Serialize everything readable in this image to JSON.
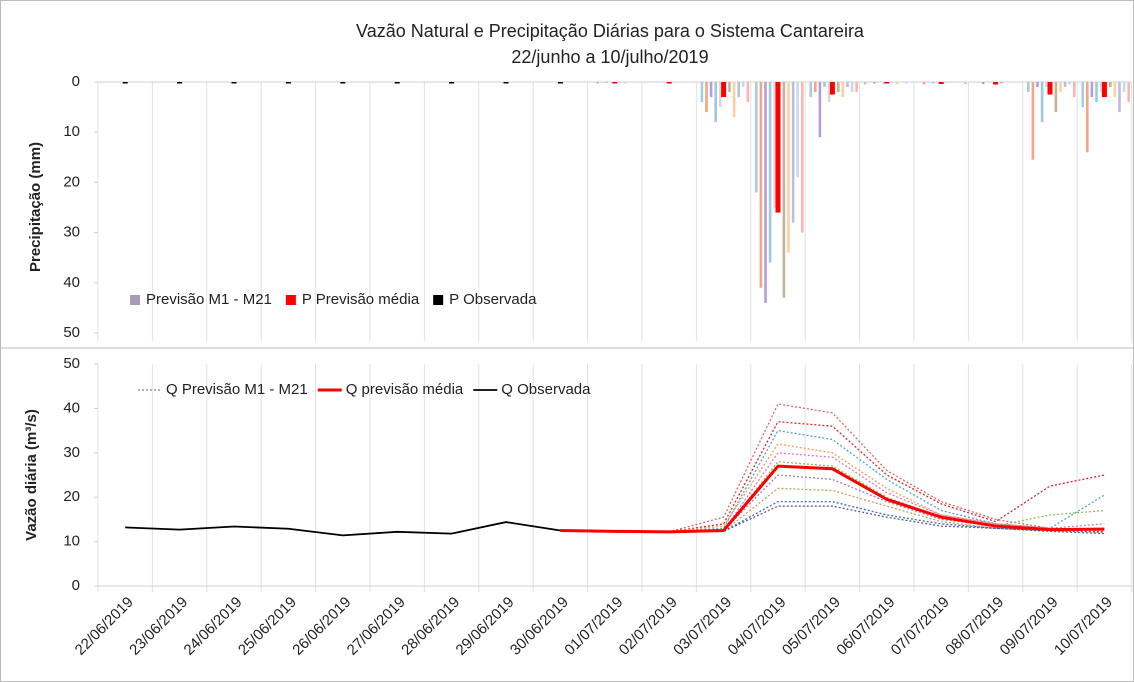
{
  "chart_data": [
    {
      "type": "bar",
      "title": "Vazão Natural e Precipitação Diárias para o Sistema Cantareira",
      "subtitle": "22/junho a 10/julho/2019",
      "ylabel": "Precipitação (mm)",
      "ylim": [
        0,
        50
      ],
      "yticks": [
        0,
        10,
        20,
        30,
        40,
        50
      ],
      "inverted": true,
      "legend": "lower-left",
      "series": [
        {
          "name": "Previsão M1 - M21",
          "color": "#a99bbd",
          "member_colors": [
            "#a6cee3",
            "#f4a582",
            "#b39ddb",
            "#9ecae1",
            "#d9d9d9",
            "#c7b299",
            "#fdd0a2",
            "#bcbddc",
            "#c6dbef",
            "#fbb4ae"
          ],
          "members": [
            [
              null,
              null,
              null,
              null,
              null,
              null,
              null,
              null,
              null,
              0,
              0,
              4,
              22,
              3,
              0.5,
              0,
              0,
              2,
              5
            ],
            [
              null,
              null,
              null,
              null,
              null,
              null,
              null,
              null,
              null,
              0.3,
              0,
              6,
              41,
              2,
              0,
              0.5,
              0,
              15.5,
              14
            ],
            [
              null,
              null,
              null,
              null,
              null,
              null,
              null,
              null,
              null,
              0,
              0,
              3,
              44,
              11,
              0.3,
              0,
              0.4,
              1,
              3
            ],
            [
              null,
              null,
              null,
              null,
              null,
              null,
              null,
              null,
              null,
              0.2,
              0,
              8,
              36,
              1,
              0,
              0.3,
              0,
              8,
              4
            ],
            [
              null,
              null,
              null,
              null,
              null,
              null,
              null,
              null,
              null,
              0,
              0,
              5,
              25,
              4,
              0.5,
              0,
              0,
              1,
              2
            ],
            [
              null,
              null,
              null,
              null,
              null,
              null,
              null,
              null,
              null,
              0,
              0,
              2,
              43,
              2,
              0,
              0,
              0.3,
              6,
              1
            ],
            [
              null,
              null,
              null,
              null,
              null,
              null,
              null,
              null,
              null,
              0.3,
              0,
              7,
              34,
              3,
              0.4,
              0.2,
              0,
              2,
              3
            ],
            [
              null,
              null,
              null,
              null,
              null,
              null,
              null,
              null,
              null,
              0,
              0,
              3,
              28,
              1,
              0,
              0,
              0,
              1,
              6
            ],
            [
              null,
              null,
              null,
              null,
              null,
              null,
              null,
              null,
              null,
              0,
              0,
              1,
              19,
              2,
              0.3,
              0,
              0,
              0.5,
              2
            ],
            [
              null,
              null,
              null,
              null,
              null,
              null,
              null,
              null,
              null,
              0,
              0,
              4,
              30,
              2,
              0,
              0.4,
              0,
              3,
              4
            ]
          ]
        },
        {
          "name": "P Previsão média",
          "color": "#ff0000",
          "values": [
            null,
            null,
            null,
            null,
            null,
            null,
            null,
            null,
            null,
            0.3,
            0,
            3,
            26,
            2.5,
            0.3,
            0.4,
            0.5,
            2.5,
            3
          ]
        },
        {
          "name": "P Observada",
          "color": "#000000",
          "values": [
            0,
            0,
            0,
            0,
            0,
            0,
            0,
            0,
            0,
            null,
            null,
            null,
            null,
            null,
            null,
            null,
            null,
            null,
            null
          ]
        }
      ]
    },
    {
      "type": "line",
      "ylabel": "Vazão diária (m³/s)",
      "ylim": [
        0,
        50
      ],
      "yticks": [
        0,
        10,
        20,
        30,
        40,
        50
      ],
      "legend": "upper-left",
      "categories": [
        "22/06/2019",
        "23/06/2019",
        "24/06/2019",
        "25/06/2019",
        "26/06/2019",
        "27/06/2019",
        "28/06/2019",
        "29/06/2019",
        "30/06/2019",
        "01/07/2019",
        "02/07/2019",
        "03/07/2019",
        "04/07/2019",
        "05/07/2019",
        "06/07/2019",
        "07/07/2019",
        "08/07/2019",
        "09/07/2019",
        "10/07/2019"
      ],
      "series": [
        {
          "name": "Q Previsão M1 - M21",
          "color": "#7f7f7f",
          "member_colors": [
            "#e06666",
            "#d62728",
            "#4fa3d1",
            "#f0a050",
            "#8fbc5a",
            "#9b7fc4",
            "#c2a25a",
            "#3b6ea5",
            "#5a5a9a",
            "#e377c2"
          ],
          "members": [
            [
              null,
              null,
              null,
              null,
              null,
              null,
              null,
              null,
              12.5,
              12.3,
              12.2,
              15.5,
              41,
              39,
              26,
              19,
              15,
              13,
              12.5
            ],
            [
              null,
              null,
              null,
              null,
              null,
              null,
              null,
              null,
              12.5,
              12.3,
              12.2,
              14,
              37,
              36,
              25,
              18.5,
              14.5,
              22.5,
              25
            ],
            [
              null,
              null,
              null,
              null,
              null,
              null,
              null,
              null,
              12.5,
              12.3,
              12.2,
              13,
              35,
              33,
              24,
              17,
              14,
              13,
              20.5
            ],
            [
              null,
              null,
              null,
              null,
              null,
              null,
              null,
              null,
              12.5,
              12.3,
              12.2,
              13.5,
              32,
              30,
              22,
              16,
              14,
              13,
              12.5
            ],
            [
              null,
              null,
              null,
              null,
              null,
              null,
              null,
              null,
              12.5,
              12.3,
              12.2,
              12.5,
              28,
              27,
              20,
              15.5,
              13.5,
              16,
              17
            ],
            [
              null,
              null,
              null,
              null,
              null,
              null,
              null,
              null,
              12.5,
              12.3,
              12.2,
              12.5,
              25,
              24,
              19,
              15,
              13.5,
              12.8,
              13
            ],
            [
              null,
              null,
              null,
              null,
              null,
              null,
              null,
              null,
              12.5,
              12.3,
              12.2,
              12.3,
              22,
              21.5,
              18,
              14.5,
              13,
              12.5,
              12
            ],
            [
              null,
              null,
              null,
              null,
              null,
              null,
              null,
              null,
              12.5,
              12.3,
              12.2,
              12.3,
              19,
              19,
              16,
              14,
              13,
              12.3,
              11.8
            ],
            [
              null,
              null,
              null,
              null,
              null,
              null,
              null,
              null,
              12.5,
              12.3,
              12.2,
              12.3,
              18,
              18,
              15.5,
              13.5,
              13,
              12.5,
              12.2
            ],
            [
              null,
              null,
              null,
              null,
              null,
              null,
              null,
              null,
              12.5,
              12.3,
              12.2,
              12.5,
              30,
              29,
              21,
              16,
              14,
              13,
              14
            ]
          ]
        },
        {
          "name": "Q previsão média",
          "color": "#ff0000",
          "values": [
            null,
            null,
            null,
            null,
            null,
            null,
            null,
            null,
            12.5,
            12.3,
            12.2,
            12.5,
            27,
            26.4,
            19.5,
            15.5,
            13.5,
            12.7,
            12.8
          ]
        },
        {
          "name": "Q Observada",
          "color": "#000000",
          "values": [
            13.2,
            12.7,
            13.4,
            12.9,
            11.4,
            12.2,
            11.8,
            14.4,
            12.5,
            null,
            null,
            null,
            null,
            null,
            null,
            null,
            null,
            null,
            null
          ]
        }
      ]
    }
  ]
}
